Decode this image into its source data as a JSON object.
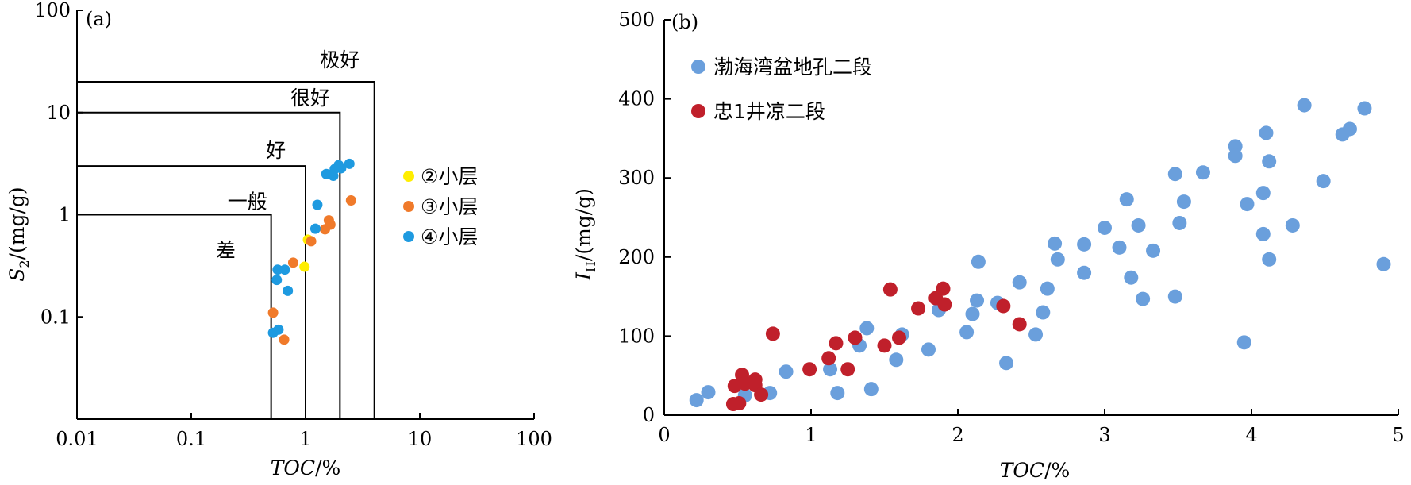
{
  "chart_data": [
    {
      "type": "scatter",
      "panel_label": "(a)",
      "xlabel_italic": "TOC",
      "xlabel_unit": "/%",
      "ylabel_main": "S",
      "ylabel_sub": "2",
      "ylabel_unit": "/(mg/g)",
      "x_scale": "log",
      "y_scale": "log",
      "xlim": [
        0.01,
        100
      ],
      "ylim": [
        0.01,
        100
      ],
      "x_ticks": [
        0.01,
        0.1,
        1,
        10,
        100
      ],
      "x_tick_labels": [
        "0.01",
        "0.1",
        "1",
        "10",
        "100"
      ],
      "y_ticks": [
        0.1,
        1,
        10,
        100
      ],
      "y_tick_labels": [
        "0.1",
        "1",
        "10",
        "100"
      ],
      "grid": false,
      "legend_position": "right",
      "grade_regions": [
        {
          "label": "差",
          "toc_max": 0.5,
          "s2_max": 1
        },
        {
          "label": "一般",
          "toc_max": 1,
          "s2_max": 3
        },
        {
          "label": "好",
          "toc_max": 2,
          "s2_max": 10
        },
        {
          "label": "很好",
          "toc_max": 4,
          "s2_max": 20
        },
        {
          "label": "极好",
          "toc_max": null,
          "s2_max": null
        }
      ],
      "series": [
        {
          "name": "②小层",
          "color": "#ffee00",
          "points": [
            [
              1.05,
              0.57
            ],
            [
              0.98,
              0.31
            ]
          ]
        },
        {
          "name": "③小层",
          "color": "#f07a2a",
          "points": [
            [
              0.52,
              0.11
            ],
            [
              0.65,
              0.06
            ],
            [
              0.78,
              0.34
            ],
            [
              1.12,
              0.55
            ],
            [
              1.48,
              0.72
            ],
            [
              1.6,
              0.88
            ],
            [
              1.65,
              0.8
            ],
            [
              2.5,
              1.38
            ]
          ]
        },
        {
          "name": "④小层",
          "color": "#1e9ae0",
          "points": [
            [
              0.52,
              0.07
            ],
            [
              0.58,
              0.075
            ],
            [
              0.56,
              0.23
            ],
            [
              0.57,
              0.29
            ],
            [
              0.66,
              0.29
            ],
            [
              0.7,
              0.18
            ],
            [
              1.22,
              0.73
            ],
            [
              1.27,
              1.25
            ],
            [
              1.52,
              2.5
            ],
            [
              1.72,
              2.5
            ],
            [
              1.75,
              2.4
            ],
            [
              1.8,
              2.8
            ],
            [
              1.95,
              3.05
            ],
            [
              2.05,
              2.85
            ],
            [
              2.42,
              3.15
            ]
          ]
        }
      ]
    },
    {
      "type": "scatter",
      "panel_label": "(b)",
      "xlabel_italic": "TOC",
      "xlabel_unit": "/%",
      "ylabel_main": "I",
      "ylabel_sub": "H",
      "ylabel_unit": "/(mg/g)",
      "xlim": [
        0,
        5
      ],
      "ylim": [
        0,
        500
      ],
      "x_ticks": [
        0,
        1,
        2,
        3,
        4,
        5
      ],
      "x_tick_labels": [
        "0",
        "1",
        "2",
        "3",
        "4",
        "5"
      ],
      "y_ticks": [
        0,
        100,
        200,
        300,
        400,
        500
      ],
      "y_tick_labels": [
        "0",
        "100",
        "200",
        "300",
        "400",
        "500"
      ],
      "grid": false,
      "legend_position": "top-left",
      "series": [
        {
          "name": "渤海湾盆地孔二段",
          "color": "#6a9fdc",
          "points": [
            [
              0.22,
              19
            ],
            [
              0.3,
              29
            ],
            [
              0.55,
              25
            ],
            [
              0.72,
              28
            ],
            [
              0.83,
              55
            ],
            [
              1.13,
              58
            ],
            [
              1.18,
              28
            ],
            [
              1.33,
              88
            ],
            [
              1.38,
              110
            ],
            [
              1.41,
              33
            ],
            [
              1.62,
              102
            ],
            [
              1.58,
              70
            ],
            [
              1.8,
              83
            ],
            [
              1.87,
              133
            ],
            [
              2.06,
              105
            ],
            [
              2.1,
              128
            ],
            [
              2.13,
              145
            ],
            [
              2.14,
              194
            ],
            [
              2.27,
              142
            ],
            [
              2.33,
              66
            ],
            [
              2.42,
              168
            ],
            [
              2.53,
              102
            ],
            [
              2.58,
              130
            ],
            [
              2.61,
              160
            ],
            [
              2.66,
              217
            ],
            [
              2.68,
              197
            ],
            [
              2.86,
              216
            ],
            [
              2.86,
              180
            ],
            [
              3.0,
              237
            ],
            [
              3.1,
              212
            ],
            [
              3.15,
              273
            ],
            [
              3.18,
              174
            ],
            [
              3.23,
              240
            ],
            [
              3.26,
              147
            ],
            [
              3.33,
              208
            ],
            [
              3.48,
              305
            ],
            [
              3.48,
              150
            ],
            [
              3.51,
              243
            ],
            [
              3.54,
              270
            ],
            [
              3.67,
              307
            ],
            [
              3.89,
              340
            ],
            [
              3.89,
              328
            ],
            [
              3.95,
              92
            ],
            [
              3.97,
              267
            ],
            [
              4.08,
              281
            ],
            [
              4.08,
              229
            ],
            [
              4.1,
              357
            ],
            [
              4.12,
              321
            ],
            [
              4.12,
              197
            ],
            [
              4.28,
              240
            ],
            [
              4.36,
              392
            ],
            [
              4.49,
              296
            ],
            [
              4.62,
              355
            ],
            [
              4.67,
              362
            ],
            [
              4.77,
              388
            ],
            [
              4.9,
              191
            ]
          ]
        },
        {
          "name": "忠1井凉二段",
          "color": "#c0202b",
          "points": [
            [
              0.47,
              14
            ],
            [
              0.51,
              15
            ],
            [
              0.48,
              37
            ],
            [
              0.53,
              51
            ],
            [
              0.55,
              40
            ],
            [
              0.62,
              45
            ],
            [
              0.62,
              38
            ],
            [
              0.66,
              26
            ],
            [
              0.74,
              103
            ],
            [
              0.99,
              58
            ],
            [
              1.12,
              72
            ],
            [
              1.17,
              91
            ],
            [
              1.25,
              58
            ],
            [
              1.3,
              98
            ],
            [
              1.5,
              88
            ],
            [
              1.54,
              159
            ],
            [
              1.6,
              98
            ],
            [
              1.73,
              135
            ],
            [
              1.85,
              148
            ],
            [
              1.9,
              160
            ],
            [
              1.91,
              140
            ],
            [
              2.31,
              138
            ],
            [
              2.42,
              115
            ]
          ]
        }
      ]
    }
  ]
}
